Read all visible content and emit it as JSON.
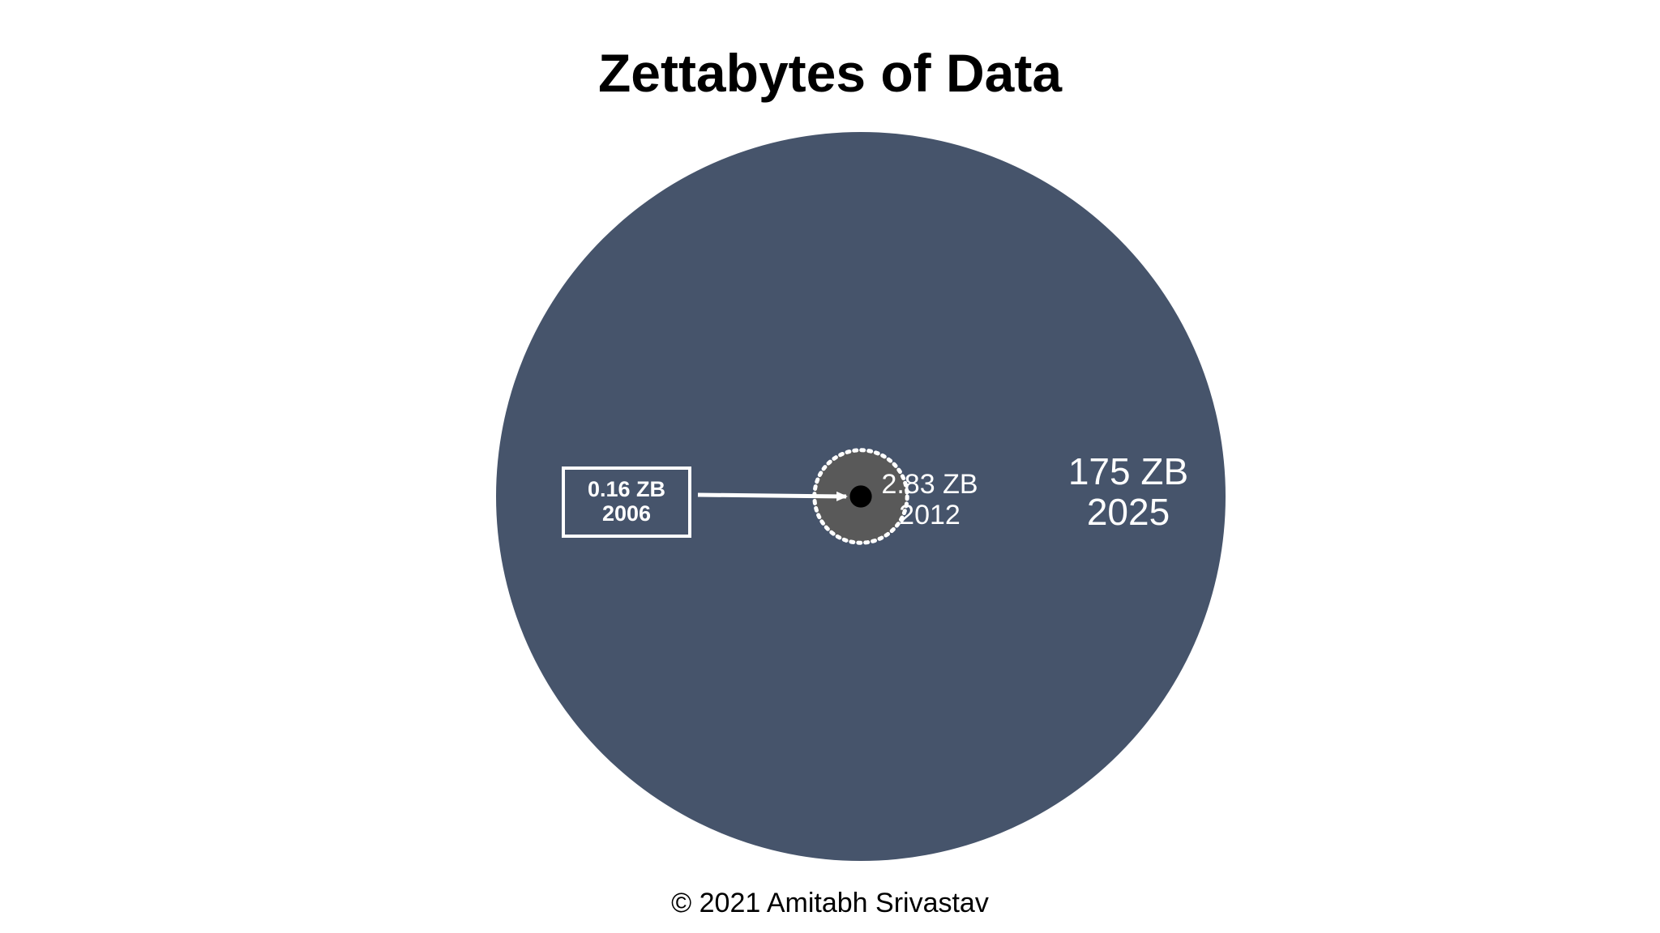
{
  "chart_data": {
    "type": "bubble",
    "title": "Zettabytes of Data",
    "unit": "ZB",
    "bubbles": [
      {
        "year": "2025",
        "value": 175,
        "value_label": "175 ZB",
        "year_label": "2025",
        "color": "#46546B",
        "border": "none"
      },
      {
        "year": "2012",
        "value": 2.83,
        "value_label": "2.83 ZB",
        "year_label": "2012",
        "color": "#595959",
        "border": "dotted-white"
      },
      {
        "year": "2006",
        "value": 0.16,
        "value_label": "0.16 ZB",
        "year_label": "2006",
        "color": "#000000",
        "border": "none",
        "callout": true
      }
    ],
    "layout": "nested-concentric"
  },
  "footer": {
    "copyright": "© 2021 Amitabh Srivastav"
  },
  "colors": {
    "background": "#FFFFFF",
    "outer_bubble": "#46546B",
    "middle_bubble": "#595959",
    "inner_dot": "#000000",
    "label_text": "#FFFFFF"
  }
}
